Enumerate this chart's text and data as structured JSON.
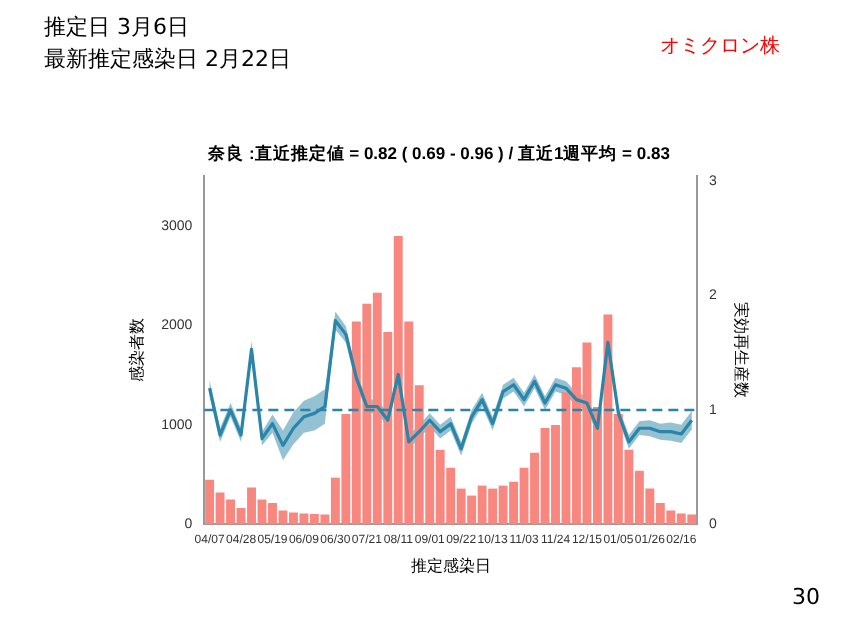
{
  "chart_data": {
    "type": "bar",
    "title": "奈良 :直近推定値 = 0.82 ( 0.69 - 0.96 ) / 直近1週平均 = 0.83",
    "xlabel": "推定感染日",
    "ylabel": "感染者数",
    "y2label": "実効再生産数",
    "annotations": [
      "推定日 3月6日",
      "最新推定感染日 2月22日",
      "オミクロン株",
      "30"
    ],
    "categories": [
      "04/07",
      null,
      null,
      "04/28",
      null,
      null,
      "05/19",
      null,
      null,
      "06/09",
      null,
      null,
      "06/30",
      null,
      null,
      "07/21",
      null,
      null,
      "08/11",
      null,
      null,
      "09/01",
      null,
      null,
      "09/22",
      null,
      null,
      "10/13",
      null,
      null,
      "11/03",
      null,
      null,
      "11/24",
      null,
      null,
      "12/15",
      null,
      null,
      "01/05",
      null,
      null,
      "01/26",
      null,
      null,
      "02/16",
      null
    ],
    "series": [
      {
        "color": "#f8877f",
        "values": [
          450,
          320,
          250,
          165,
          370,
          250,
          215,
          140,
          120,
          110,
          105,
          100,
          470,
          1110,
          2040,
          2220,
          2330,
          1935,
          2900,
          2040,
          1400,
          1000,
          750,
          570,
          360,
          290,
          390,
          360,
          390,
          430,
          570,
          720,
          970,
          1000,
          1330,
          1580,
          1830,
          1180,
          2110,
          1110,
          750,
          540,
          360,
          215,
          140,
          110,
          100
        ]
      },
      {
        "type": "line",
        "axis": "y2",
        "color": "#2a85a8",
        "values": [
          1.19,
          0.78,
          1.0,
          0.78,
          1.53,
          0.75,
          0.88,
          0.69,
          0.84,
          0.94,
          0.97,
          1.03,
          1.78,
          1.66,
          1.28,
          1.03,
          1.03,
          0.91,
          1.31,
          0.72,
          0.81,
          0.91,
          0.81,
          0.88,
          0.66,
          0.94,
          1.09,
          0.88,
          1.16,
          1.22,
          1.09,
          1.25,
          1.06,
          1.22,
          1.19,
          1.09,
          1.06,
          0.84,
          1.59,
          0.97,
          0.72,
          0.84,
          0.84,
          0.81,
          0.81,
          0.79,
          0.91
        ],
        "lower": [
          1.12,
          0.72,
          0.94,
          0.72,
          1.46,
          0.69,
          0.8,
          0.56,
          0.7,
          0.8,
          0.82,
          0.88,
          1.7,
          1.59,
          1.22,
          0.97,
          0.97,
          0.85,
          1.25,
          0.66,
          0.75,
          0.85,
          0.75,
          0.82,
          0.6,
          0.88,
          1.03,
          0.82,
          1.1,
          1.16,
          1.03,
          1.19,
          1.0,
          1.16,
          1.13,
          1.03,
          1.0,
          0.78,
          1.52,
          0.91,
          0.66,
          0.78,
          0.77,
          0.74,
          0.73,
          0.71,
          0.83
        ],
        "upper": [
          1.26,
          0.84,
          1.06,
          0.84,
          1.6,
          0.81,
          0.96,
          0.82,
          0.98,
          1.08,
          1.12,
          1.18,
          1.86,
          1.73,
          1.34,
          1.09,
          1.09,
          0.97,
          1.37,
          0.78,
          0.87,
          0.97,
          0.87,
          0.94,
          0.72,
          1.0,
          1.15,
          0.94,
          1.22,
          1.28,
          1.15,
          1.31,
          1.12,
          1.28,
          1.25,
          1.15,
          1.12,
          0.9,
          1.66,
          1.03,
          0.78,
          0.9,
          0.91,
          0.88,
          0.89,
          0.87,
          0.99
        ]
      }
    ],
    "ylim": [
      0,
      3500
    ],
    "yticks": [
      0,
      1000,
      2000,
      3000
    ],
    "y2lim": [
      0,
      3.04
    ],
    "y2ticks": [
      0,
      1,
      2,
      3
    ],
    "ref_lines": [
      {
        "axis": "y2",
        "value": 1,
        "color": "#2a85a8",
        "line_style": "dashed"
      }
    ],
    "grid": false,
    "legend": false
  }
}
